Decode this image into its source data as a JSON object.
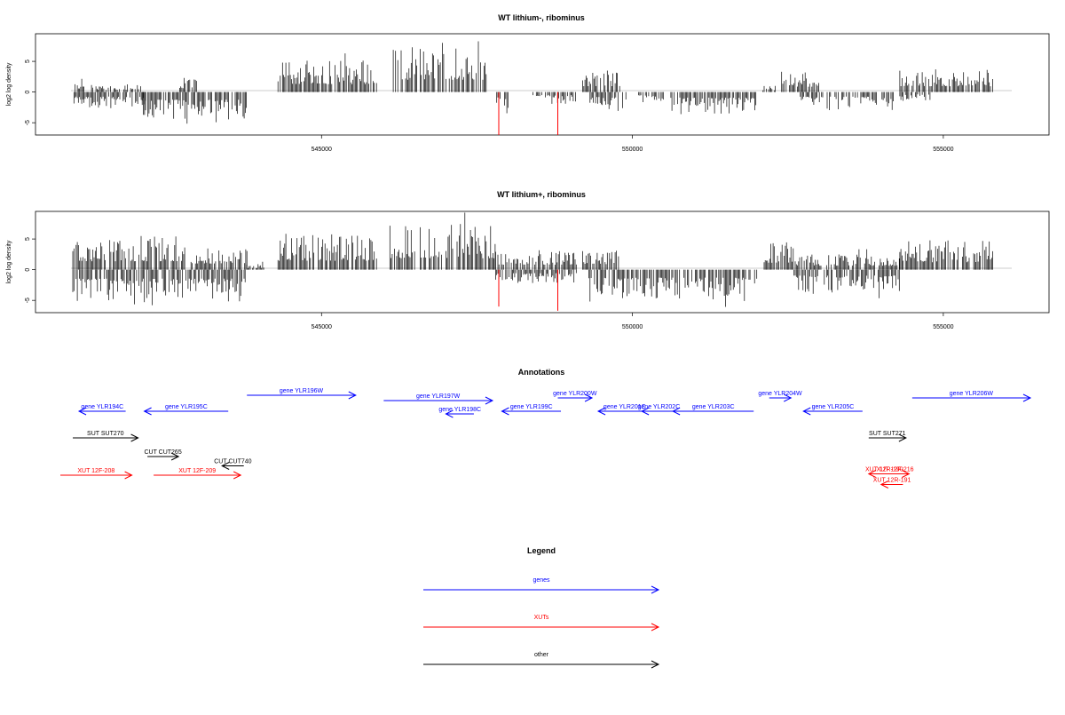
{
  "chart_data": [
    {
      "type": "bar",
      "title": "WT lithium-, ribominus",
      "ylabel": "log2 log density",
      "xlabel": "",
      "xlim": [
        540400,
        556700
      ],
      "ylim": [
        -7,
        9.5
      ],
      "xticks": [
        545000,
        550000,
        555000
      ],
      "xtick_labels": [
        "545000",
        "550000",
        "555000"
      ],
      "yticks": [
        -5,
        0,
        5
      ],
      "ytick_labels": [
        "-5",
        "0",
        "5"
      ],
      "grid": false,
      "segments": [
        {
          "start": 541000,
          "end": 541200,
          "sign": 1,
          "amp": 2.3
        },
        {
          "start": 541000,
          "end": 542200,
          "sign": -1,
          "amp": 3.0
        },
        {
          "start": 541300,
          "end": 542100,
          "sign": 1,
          "amp": 1.4
        },
        {
          "start": 542100,
          "end": 543800,
          "sign": -1,
          "amp": 5.0
        },
        {
          "start": 542700,
          "end": 543000,
          "sign": 1,
          "amp": 2.5
        },
        {
          "start": 544300,
          "end": 545900,
          "sign": 1,
          "amp": 5.2
        },
        {
          "start": 546100,
          "end": 547700,
          "sign": 1,
          "amp": 8.0
        },
        {
          "start": 547800,
          "end": 548000,
          "sign": -1,
          "amp": 3.5
        },
        {
          "start": 548400,
          "end": 549100,
          "sign": -1,
          "amp": 2.0
        },
        {
          "start": 549200,
          "end": 549800,
          "sign": 1,
          "amp": 3.8
        },
        {
          "start": 549300,
          "end": 549900,
          "sign": -1,
          "amp": 3.2
        },
        {
          "start": 550100,
          "end": 550500,
          "sign": -1,
          "amp": 2.0
        },
        {
          "start": 550600,
          "end": 552000,
          "sign": -1,
          "amp": 3.6
        },
        {
          "start": 552100,
          "end": 552300,
          "sign": 1,
          "amp": 1.0
        },
        {
          "start": 552400,
          "end": 553000,
          "sign": 1,
          "amp": 3.5
        },
        {
          "start": 552700,
          "end": 554200,
          "sign": -1,
          "amp": 3.0
        },
        {
          "start": 554300,
          "end": 554800,
          "sign": -1,
          "amp": 1.5
        },
        {
          "start": 554300,
          "end": 555800,
          "sign": 1,
          "amp": 3.8
        }
      ],
      "highlights": [
        {
          "x": 547850,
          "y": -7.0
        },
        {
          "x": 548800,
          "y": -7.0
        }
      ]
    },
    {
      "type": "bar",
      "title": "WT lithium+, ribominus",
      "ylabel": "log2 log density",
      "xlabel": "",
      "xlim": [
        540400,
        556700
      ],
      "ylim": [
        -7,
        9.5
      ],
      "xticks": [
        545000,
        550000,
        555000
      ],
      "xtick_labels": [
        "545000",
        "550000",
        "555000"
      ],
      "yticks": [
        -5,
        0,
        5
      ],
      "ytick_labels": [
        "-5",
        "0",
        "5"
      ],
      "grid": false,
      "segments": [
        {
          "start": 541000,
          "end": 542800,
          "sign": 1,
          "amp": 5.5
        },
        {
          "start": 541000,
          "end": 543800,
          "sign": -1,
          "amp": 5.8
        },
        {
          "start": 542900,
          "end": 543800,
          "sign": 1,
          "amp": 4.0
        },
        {
          "start": 543800,
          "end": 544100,
          "sign": 1,
          "amp": 1.0
        },
        {
          "start": 544300,
          "end": 545900,
          "sign": 1,
          "amp": 5.8
        },
        {
          "start": 546100,
          "end": 547800,
          "sign": 1,
          "amp": 7.5
        },
        {
          "start": 547800,
          "end": 549100,
          "sign": 1,
          "amp": 3.2
        },
        {
          "start": 547800,
          "end": 549100,
          "sign": -1,
          "amp": 2.2
        },
        {
          "start": 549200,
          "end": 549800,
          "sign": 1,
          "amp": 3.5
        },
        {
          "start": 549300,
          "end": 552000,
          "sign": -1,
          "amp": 5.2
        },
        {
          "start": 552100,
          "end": 552600,
          "sign": 1,
          "amp": 4.5
        },
        {
          "start": 552600,
          "end": 554300,
          "sign": -1,
          "amp": 3.8
        },
        {
          "start": 552600,
          "end": 554300,
          "sign": 1,
          "amp": 2.6
        },
        {
          "start": 554300,
          "end": 555800,
          "sign": 1,
          "amp": 4.8
        }
      ],
      "highlights": [
        {
          "x": 547850,
          "y": -6.0
        },
        {
          "x": 548800,
          "y": -6.7
        }
      ]
    }
  ],
  "annotations": {
    "title": "Annotations",
    "colors": {
      "gene": "#0000ff",
      "xut": "#ff0000",
      "other": "#000000"
    },
    "items": [
      {
        "label": "gene YLR194C",
        "kind": "gene",
        "start": 541100,
        "end": 541850,
        "strand": "-",
        "row": 0
      },
      {
        "label": "gene YLR195C",
        "kind": "gene",
        "start": 542150,
        "end": 543500,
        "strand": "-",
        "row": 0
      },
      {
        "label": "gene YLR196W",
        "kind": "gene",
        "start": 543800,
        "end": 545550,
        "strand": "+",
        "row": -0.6
      },
      {
        "label": "gene YLR197W",
        "kind": "gene",
        "start": 546000,
        "end": 547750,
        "strand": "+",
        "row": -0.4
      },
      {
        "label": "gene YLR198C",
        "kind": "gene",
        "start": 547000,
        "end": 547450,
        "strand": "-",
        "row": 0.1
      },
      {
        "label": "gene YLR199C",
        "kind": "gene",
        "start": 547900,
        "end": 548850,
        "strand": "-",
        "row": 0
      },
      {
        "label": "gene YLR200W",
        "kind": "gene",
        "start": 548800,
        "end": 549350,
        "strand": "+",
        "row": -0.5
      },
      {
        "label": "gene YLR201C",
        "kind": "gene",
        "start": 549450,
        "end": 550300,
        "strand": "-",
        "row": 0
      },
      {
        "label": "gene YLR202C",
        "kind": "gene",
        "start": 550150,
        "end": 550700,
        "strand": "-",
        "row": 0
      },
      {
        "label": "gene YLR203C",
        "kind": "gene",
        "start": 550650,
        "end": 551950,
        "strand": "-",
        "row": 0
      },
      {
        "label": "gene YLR204W",
        "kind": "gene",
        "start": 552200,
        "end": 552550,
        "strand": "+",
        "row": -0.5
      },
      {
        "label": "gene YLR205C",
        "kind": "gene",
        "start": 552750,
        "end": 553700,
        "strand": "-",
        "row": 0
      },
      {
        "label": "gene YLR206W",
        "kind": "gene",
        "start": 554500,
        "end": 556400,
        "strand": "+",
        "row": -0.5
      },
      {
        "label": "SUT SUT270",
        "kind": "other",
        "start": 541000,
        "end": 542050,
        "strand": "+",
        "row": 1
      },
      {
        "label": "CUT CUT265",
        "kind": "other",
        "start": 542200,
        "end": 542700,
        "strand": "+",
        "row": 1.7
      },
      {
        "label": "CUT CUT740",
        "kind": "other",
        "start": 543400,
        "end": 543750,
        "strand": "-",
        "row": 2.05
      },
      {
        "label": "XUT 12F-208",
        "kind": "xut",
        "start": 540800,
        "end": 541950,
        "strand": "+",
        "row": 2.4
      },
      {
        "label": "XUT 12F-209",
        "kind": "xut",
        "start": 542300,
        "end": 543700,
        "strand": "+",
        "row": 2.4
      },
      {
        "label": "SUT SUT271",
        "kind": "other",
        "start": 553800,
        "end": 554400,
        "strand": "+",
        "row": 1
      },
      {
        "label": "XUT 12R-190",
        "kind": "xut",
        "start": 553800,
        "end": 554300,
        "strand": "-",
        "row": 2.35
      },
      {
        "label": "XUT 12F-216",
        "kind": "xut",
        "start": 554000,
        "end": 554450,
        "strand": "+",
        "row": 2.35
      },
      {
        "label": "XUT 12R-191",
        "kind": "xut",
        "start": 554000,
        "end": 554350,
        "strand": "-",
        "row": 2.75
      }
    ]
  },
  "legend": {
    "title": "Legend",
    "items": [
      {
        "label": "genes",
        "color": "#0000ff"
      },
      {
        "label": "XUTs",
        "color": "#ff0000"
      },
      {
        "label": "other",
        "color": "#000000"
      }
    ]
  }
}
